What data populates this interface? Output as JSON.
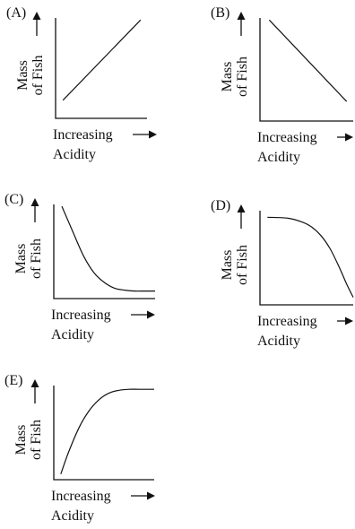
{
  "chart_data": [
    {
      "type": "line",
      "panel": "(A)",
      "xlabel": [
        "Increasing",
        "Acidity"
      ],
      "ylabel": [
        "Mass",
        "of Fish"
      ],
      "shape": "linear-increasing",
      "xlim": [
        0,
        1
      ],
      "ylim": [
        0,
        1
      ],
      "x": [
        0.08,
        0.93
      ],
      "y": [
        0.18,
        0.98
      ]
    },
    {
      "type": "line",
      "panel": "(B)",
      "xlabel": [
        "Increasing",
        "Acidity"
      ],
      "ylabel": [
        "Mass",
        "of Fish"
      ],
      "shape": "linear-decreasing",
      "xlim": [
        0,
        1
      ],
      "ylim": [
        0,
        1
      ],
      "x": [
        0.1,
        0.93
      ],
      "y": [
        0.98,
        0.19
      ]
    },
    {
      "type": "line",
      "panel": "(C)",
      "xlabel": [
        "Increasing",
        "Acidity"
      ],
      "ylabel": [
        "Mass",
        "of Fish"
      ],
      "shape": "decreasing-decay",
      "xlim": [
        0,
        1
      ],
      "ylim": [
        0,
        1
      ],
      "x": [
        0.08,
        0.2,
        0.3,
        0.4,
        0.5,
        0.6,
        0.7,
        0.8,
        0.9,
        1.0
      ],
      "y": [
        0.98,
        0.68,
        0.44,
        0.27,
        0.17,
        0.11,
        0.09,
        0.08,
        0.08,
        0.08
      ]
    },
    {
      "type": "line",
      "panel": "(D)",
      "xlabel": [
        "Increasing",
        "Acidity"
      ],
      "ylabel": [
        "Mass",
        "of Fish"
      ],
      "shape": "decreasing-accelerating",
      "xlim": [
        0,
        1
      ],
      "ylim": [
        0,
        1
      ],
      "x": [
        0.08,
        0.3,
        0.45,
        0.55,
        0.65,
        0.75,
        0.85,
        0.93,
        1.0
      ],
      "y": [
        0.93,
        0.92,
        0.88,
        0.83,
        0.74,
        0.6,
        0.4,
        0.22,
        0.08
      ]
    },
    {
      "type": "line",
      "panel": "(E)",
      "xlabel": [
        "Increasing",
        "Acidity"
      ],
      "ylabel": [
        "Mass",
        "of Fish"
      ],
      "shape": "increasing-saturating",
      "xlim": [
        0,
        1
      ],
      "ylim": [
        0,
        1
      ],
      "x": [
        0.07,
        0.15,
        0.25,
        0.35,
        0.45,
        0.55,
        0.65,
        0.75,
        0.85,
        1.0
      ],
      "y": [
        0.06,
        0.3,
        0.55,
        0.73,
        0.85,
        0.92,
        0.95,
        0.96,
        0.96,
        0.96
      ]
    }
  ]
}
